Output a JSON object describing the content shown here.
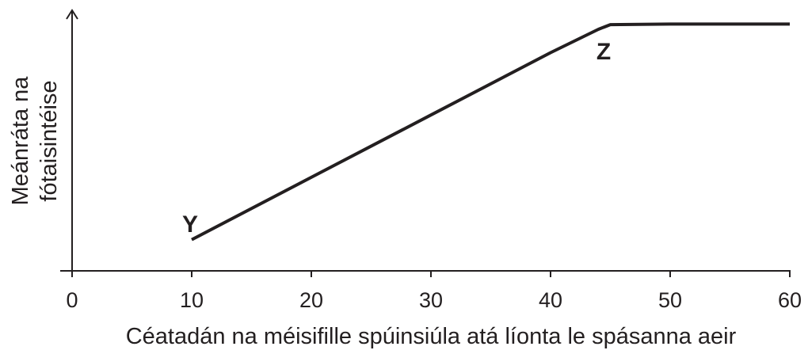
{
  "chart_data": {
    "type": "line",
    "xlabel": "Céatadán na méisifille spúinsiúla atá líonta le spásanna aeir",
    "ylabel_lines": [
      "Meánráta na",
      "fótaisintéise"
    ],
    "xlim": [
      0,
      60
    ],
    "x_ticks": [
      "0",
      "10",
      "20",
      "30",
      "40",
      "50",
      "60"
    ],
    "y_ticks": [],
    "grid": false,
    "series": [
      {
        "x": [
          10,
          20,
          30,
          40,
          44,
          45,
          50,
          60
        ],
        "y": [
          0.12,
          0.36,
          0.6,
          0.84,
          0.93,
          0.948,
          0.95,
          0.95
        ]
      }
    ],
    "annotations": [
      {
        "text": "Y",
        "x": 10
      },
      {
        "text": "Z",
        "x": 45
      }
    ]
  }
}
